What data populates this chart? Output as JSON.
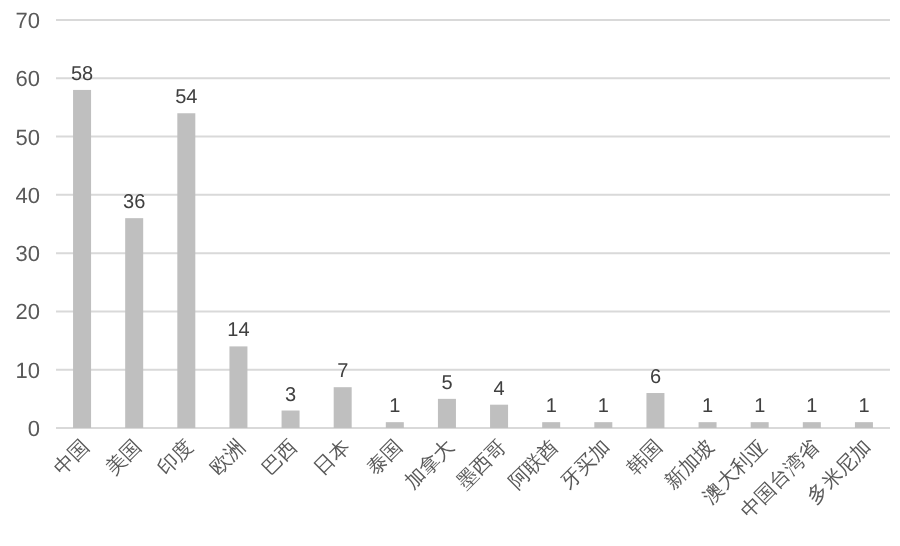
{
  "chart_data": {
    "type": "bar",
    "categories": [
      "中国",
      "美国",
      "印度",
      "欧洲",
      "巴西",
      "日本",
      "泰国",
      "加拿大",
      "墨西哥",
      "阿联酋",
      "牙买加",
      "韩国",
      "新加坡",
      "澳大利亚",
      "中国台湾省",
      "多米尼加"
    ],
    "values": [
      58,
      36,
      54,
      14,
      3,
      7,
      1,
      5,
      4,
      1,
      1,
      6,
      1,
      1,
      1,
      1
    ],
    "color": "#bfbfbf",
    "ylim": [
      0,
      70
    ],
    "yticks": [
      0,
      10,
      20,
      30,
      40,
      50,
      60,
      70
    ],
    "grid": "y",
    "data_labels": true
  }
}
